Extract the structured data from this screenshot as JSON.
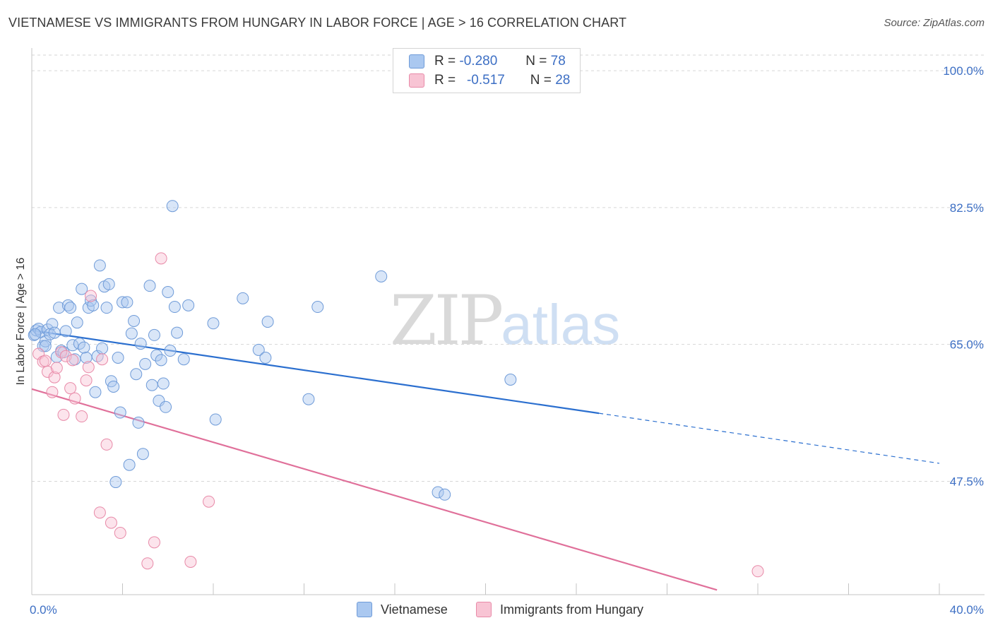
{
  "title": "VIETNAMESE VS IMMIGRANTS FROM HUNGARY IN LABOR FORCE | AGE > 16 CORRELATION CHART",
  "source": "Source: ZipAtlas.com",
  "watermark": {
    "zip": "ZIP",
    "atlas": "atlas"
  },
  "legend": {
    "rows": [
      {
        "r_label": "R =",
        "r_value": "-0.280",
        "n_label": "N =",
        "n_value": "78",
        "color": "#aac8f0",
        "border": "#6f9bd8"
      },
      {
        "r_label": "R =",
        "r_value": "-0.517",
        "n_label": "N =",
        "n_value": "28",
        "color": "#f8c4d4",
        "border": "#e88aa8"
      }
    ]
  },
  "chart_data": {
    "type": "scatter",
    "title": "VIETNAMESE VS IMMIGRANTS FROM HUNGARY IN LABOR FORCE | AGE > 16 CORRELATION CHART",
    "xlabel": "",
    "ylabel": "In Labor Force | Age > 16",
    "xlim": [
      0,
      40
    ],
    "ylim": [
      33,
      102
    ],
    "x_tick_labels": [
      "0.0%",
      "40.0%"
    ],
    "y_ticks": [
      47.5,
      65.0,
      82.5,
      100.0
    ],
    "y_tick_labels": [
      "47.5%",
      "65.0%",
      "82.5%",
      "100.0%"
    ],
    "series": [
      {
        "name": "Vietnamese",
        "color": "#aac8f0",
        "stroke": "#6f9bd8",
        "trend": {
          "x0": 0,
          "y0": 66.8,
          "x1": 25,
          "y1": 56.2,
          "dash_to_x": 40,
          "dash_to_y": 49.8,
          "color": "#2b6fcf"
        },
        "points": [
          [
            0.1,
            66.2
          ],
          [
            0.2,
            66.8
          ],
          [
            0.3,
            67.0
          ],
          [
            0.4,
            66.6
          ],
          [
            0.5,
            64.8
          ],
          [
            0.6,
            65.4
          ],
          [
            0.7,
            66.9
          ],
          [
            0.8,
            66.3
          ],
          [
            0.9,
            67.6
          ],
          [
            1.0,
            66.5
          ],
          [
            1.1,
            63.4
          ],
          [
            1.2,
            69.7
          ],
          [
            1.3,
            64.2
          ],
          [
            1.4,
            64.0
          ],
          [
            1.5,
            66.7
          ],
          [
            1.6,
            70.0
          ],
          [
            1.7,
            69.7
          ],
          [
            1.8,
            64.9
          ],
          [
            1.9,
            63.1
          ],
          [
            2.0,
            67.8
          ],
          [
            2.1,
            65.1
          ],
          [
            2.2,
            72.1
          ],
          [
            2.3,
            64.6
          ],
          [
            2.4,
            63.3
          ],
          [
            2.5,
            69.7
          ],
          [
            2.6,
            70.6
          ],
          [
            2.7,
            70.0
          ],
          [
            2.8,
            58.9
          ],
          [
            2.9,
            63.5
          ],
          [
            3.0,
            75.1
          ],
          [
            3.1,
            64.5
          ],
          [
            3.2,
            72.4
          ],
          [
            3.3,
            69.7
          ],
          [
            3.4,
            72.7
          ],
          [
            3.5,
            60.3
          ],
          [
            3.6,
            59.6
          ],
          [
            3.7,
            47.4
          ],
          [
            3.8,
            63.3
          ],
          [
            3.9,
            56.3
          ],
          [
            4.0,
            70.4
          ],
          [
            4.2,
            70.4
          ],
          [
            4.3,
            49.6
          ],
          [
            4.4,
            66.4
          ],
          [
            4.5,
            68.0
          ],
          [
            4.6,
            61.2
          ],
          [
            4.7,
            55.0
          ],
          [
            4.8,
            65.1
          ],
          [
            4.9,
            51.0
          ],
          [
            5.0,
            62.5
          ],
          [
            5.2,
            72.5
          ],
          [
            5.3,
            59.8
          ],
          [
            5.4,
            66.2
          ],
          [
            5.5,
            63.6
          ],
          [
            5.6,
            57.8
          ],
          [
            5.7,
            63.0
          ],
          [
            5.8,
            60.0
          ],
          [
            5.9,
            57.0
          ],
          [
            6.0,
            71.7
          ],
          [
            6.1,
            64.2
          ],
          [
            6.2,
            82.7
          ],
          [
            6.3,
            69.8
          ],
          [
            6.4,
            66.5
          ],
          [
            6.7,
            63.1
          ],
          [
            6.9,
            70.0
          ],
          [
            8.0,
            67.7
          ],
          [
            8.1,
            55.4
          ],
          [
            9.3,
            70.9
          ],
          [
            10.0,
            64.3
          ],
          [
            10.3,
            63.3
          ],
          [
            10.4,
            67.9
          ],
          [
            12.2,
            58.0
          ],
          [
            12.6,
            69.8
          ],
          [
            15.4,
            73.7
          ],
          [
            17.9,
            46.1
          ],
          [
            18.2,
            45.8
          ],
          [
            21.1,
            60.5
          ],
          [
            0.15,
            66.3
          ],
          [
            0.6,
            64.8
          ]
        ]
      },
      {
        "name": "Immigrants from Hungary",
        "color": "#f8c4d4",
        "stroke": "#e88aa8",
        "trend": {
          "x0": 0,
          "y0": 59.3,
          "x1": 30.2,
          "y1": 33.6,
          "color": "#e0709a"
        },
        "points": [
          [
            0.3,
            63.8
          ],
          [
            0.5,
            62.8
          ],
          [
            0.6,
            62.9
          ],
          [
            0.7,
            61.5
          ],
          [
            0.9,
            58.9
          ],
          [
            1.0,
            60.8
          ],
          [
            1.3,
            64.0
          ],
          [
            1.4,
            56.0
          ],
          [
            1.5,
            63.5
          ],
          [
            1.7,
            59.4
          ],
          [
            1.8,
            63.0
          ],
          [
            1.9,
            58.1
          ],
          [
            2.2,
            55.8
          ],
          [
            2.4,
            60.4
          ],
          [
            2.5,
            62.1
          ],
          [
            2.6,
            71.2
          ],
          [
            3.1,
            63.1
          ],
          [
            3.3,
            52.2
          ],
          [
            3.0,
            43.5
          ],
          [
            3.5,
            42.2
          ],
          [
            3.9,
            40.9
          ],
          [
            5.1,
            37.0
          ],
          [
            5.4,
            39.7
          ],
          [
            5.7,
            76.0
          ],
          [
            7.0,
            37.2
          ],
          [
            7.8,
            44.9
          ],
          [
            32.0,
            36.0
          ],
          [
            1.1,
            62.0
          ]
        ]
      }
    ]
  },
  "bottom_legend": [
    {
      "label": "Vietnamese",
      "color": "#aac8f0",
      "border": "#6f9bd8"
    },
    {
      "label": "Immigrants from Hungary",
      "color": "#f8c4d4",
      "border": "#e88aa8"
    }
  ]
}
